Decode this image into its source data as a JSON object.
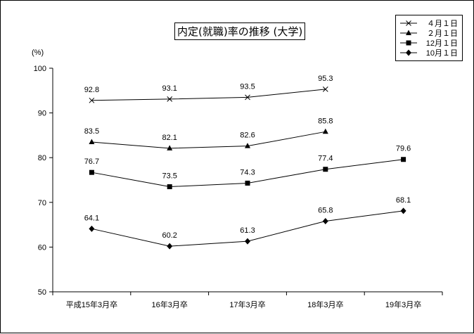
{
  "chart_data": {
    "type": "line",
    "title": "内定(就職)率の推移 (大学)",
    "ylabel": "(%)",
    "ylim": [
      50,
      100
    ],
    "yticks": [
      50,
      60,
      70,
      80,
      90,
      100
    ],
    "categories": [
      "平成15年3月卒",
      "16年3月卒",
      "17年3月卒",
      "18年3月卒",
      "19年3月卒"
    ],
    "series": [
      {
        "name": "４月１日",
        "marker": "cross",
        "values": [
          92.8,
          93.1,
          93.5,
          95.3,
          null
        ]
      },
      {
        "name": "２月１日",
        "marker": "triangle",
        "values": [
          83.5,
          82.1,
          82.6,
          85.8,
          null
        ]
      },
      {
        "name": "12月１日",
        "marker": "square",
        "values": [
          76.7,
          73.5,
          74.3,
          77.4,
          79.6
        ]
      },
      {
        "name": "10月１日",
        "marker": "diamond",
        "values": [
          64.1,
          60.2,
          61.3,
          65.8,
          68.1
        ]
      }
    ],
    "data_labels": [
      [
        "92.8",
        "93.1",
        "93.5",
        "95.3",
        null
      ],
      [
        "83.5",
        "82.1",
        "82.6",
        "85.8",
        null
      ],
      [
        "76.7",
        "73.5",
        "74.3",
        "77.4",
        "79.6"
      ],
      [
        "64.1",
        "60.2",
        "61.3",
        "65.8",
        "68.1"
      ]
    ],
    "legend_position": "top-right",
    "grid": false
  }
}
